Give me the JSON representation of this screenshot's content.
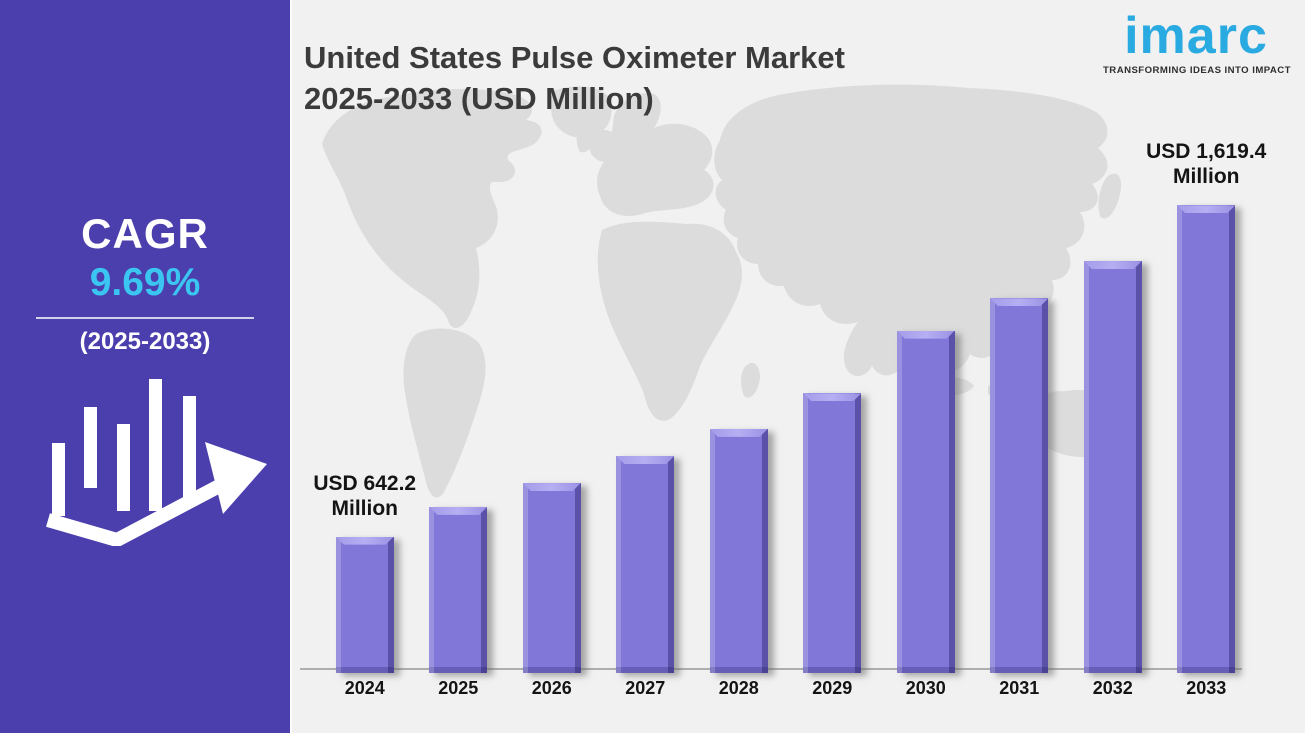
{
  "header": {
    "title_line1": "United States Pulse Oximeter Market",
    "title_line2": "2025-2033 (USD Million)"
  },
  "logo": {
    "brand": "imarc",
    "tagline": "TRANSFORMING IDEAS INTO IMPACT",
    "brand_color": "#29aae1"
  },
  "sidebar": {
    "cagr_label": "CAGR",
    "cagr_value": "9.69%",
    "period": "(2025-2033)",
    "icon": "growth-bars-arrow-icon",
    "background_color": "#4b3ead",
    "value_color": "#3bc5f1"
  },
  "chart_data": {
    "type": "bar",
    "title": "United States Pulse Oximeter Market 2025-2033 (USD Million)",
    "unit": "USD Million",
    "categories": [
      "2024",
      "2025",
      "2026",
      "2027",
      "2028",
      "2029",
      "2030",
      "2031",
      "2032",
      "2033"
    ],
    "values": [
      642.2,
      730,
      800,
      880,
      960,
      1065,
      1250,
      1345,
      1455,
      1619.4
    ],
    "labeled_values": {
      "2024": 642.2,
      "2033": 1619.4
    },
    "annotations": {
      "start": {
        "line1": "USD 642.2",
        "line2": "Million"
      },
      "end": {
        "line1": "USD 1,619.4",
        "line2": "Million"
      }
    },
    "xlabel": "",
    "ylabel": "",
    "ylim": [
      240,
      1700
    ],
    "grid": false,
    "legend": false,
    "bar_color": "#8177d8",
    "background_color": "#f1f1f1",
    "map_color": "#dcdcdc"
  }
}
